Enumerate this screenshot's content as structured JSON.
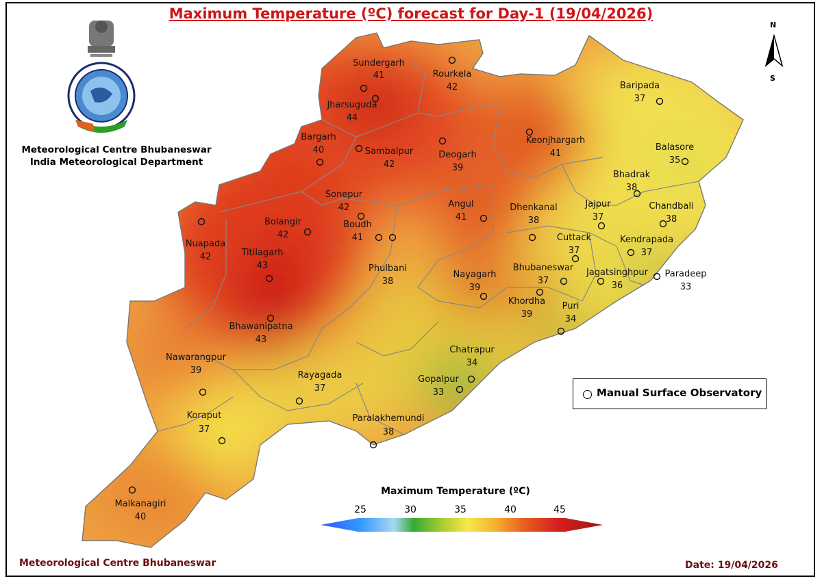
{
  "title": "Maximum Temperature (ºC) forecast for Day-1 (19/04/2026)",
  "org_line1": "Meteorological Centre Bhubaneswar",
  "org_line2": "India Meteorological Department",
  "logo": {
    "emblem": "state-emblem-icon",
    "seal": "imd-seal-icon",
    "seal_text": "भारत मौसम विज्ञान विभाग  INDIA METEOROLOGICAL DEPARTMENT"
  },
  "footer_left": "Meteorological Centre Bhubaneswar",
  "footer_right": "Date: 19/04/2026",
  "north_arrow": {
    "n": "N",
    "s": "S"
  },
  "legend": {
    "label": "Manual Surface Observatory"
  },
  "colorbar": {
    "title": "Maximum Temperature (ºC)",
    "ticks": [
      "25",
      "30",
      "35",
      "40",
      "45"
    ],
    "colors": [
      "#3355ff",
      "#44aaee",
      "#a8d8f0",
      "#33aa33",
      "#aacc33",
      "#f7e84a",
      "#f5b030",
      "#e86020",
      "#d42020",
      "#a01515"
    ]
  },
  "stations": [
    {
      "name": "Sundergarh",
      "value": "41"
    },
    {
      "name": "Rourkela",
      "value": "42"
    },
    {
      "name": "Jharsuguda",
      "value": "44"
    },
    {
      "name": "Baripada",
      "value": "37"
    },
    {
      "name": "Bargarh",
      "value": "40"
    },
    {
      "name": "Sambalpur",
      "value": "42"
    },
    {
      "name": "Deogarh",
      "value": "39"
    },
    {
      "name": "Keonjhargarh",
      "value": "41"
    },
    {
      "name": "Balasore",
      "value": "35"
    },
    {
      "name": "Bhadrak",
      "value": "38"
    },
    {
      "name": "Sonepur",
      "value": "42"
    },
    {
      "name": "Bolangir",
      "value": "42"
    },
    {
      "name": "Boudh",
      "value": "41"
    },
    {
      "name": "Angul",
      "value": "41"
    },
    {
      "name": "Dhenkanal",
      "value": "38"
    },
    {
      "name": "Jajpur",
      "value": "37"
    },
    {
      "name": "Chandbali",
      "value": "38"
    },
    {
      "name": "Nuapada",
      "value": "42"
    },
    {
      "name": "Titilagarh",
      "value": "43"
    },
    {
      "name": "Cuttack",
      "value": "37"
    },
    {
      "name": "Kendrapada",
      "value": "37"
    },
    {
      "name": "Phulbani",
      "value": "38"
    },
    {
      "name": "Nayagarh",
      "value": "39"
    },
    {
      "name": "Bhubaneswar",
      "value": "37"
    },
    {
      "name": "Jagatsinghpur",
      "value": "36"
    },
    {
      "name": "Paradeep",
      "value": "33"
    },
    {
      "name": "Khordha",
      "value": "39"
    },
    {
      "name": "Puri",
      "value": "34"
    },
    {
      "name": "Bhawanipatna",
      "value": "43"
    },
    {
      "name": "Chatrapur",
      "value": "34"
    },
    {
      "name": "Nawarangpur",
      "value": "39"
    },
    {
      "name": "Rayagada",
      "value": "37"
    },
    {
      "name": "Gopalpur",
      "value": "33"
    },
    {
      "name": "Paralakhemundi",
      "value": "38"
    },
    {
      "name": "Koraput",
      "value": "37"
    },
    {
      "name": "Malkanagiri",
      "value": "40"
    }
  ]
}
